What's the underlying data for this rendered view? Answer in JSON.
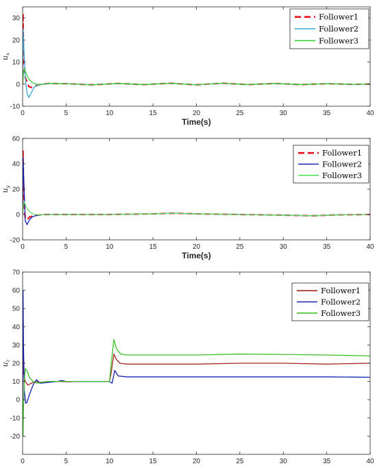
{
  "chart_data": [
    {
      "type": "line",
      "panel": "ux",
      "ylabel_main": "u",
      "ylabel_sub": "x",
      "xlabel": "Time(s)",
      "xlim": [
        0,
        40
      ],
      "ylim": [
        -10,
        35
      ],
      "xticks": [
        0,
        5,
        10,
        15,
        20,
        25,
        30,
        35,
        40
      ],
      "xtick_labels": [
        "0",
        "5",
        "10",
        "15",
        "20",
        "25",
        "30",
        "35",
        "40"
      ],
      "yticks": [
        -10,
        0,
        10,
        20,
        30
      ],
      "ytick_labels": [
        "-10",
        "0",
        "10",
        "20",
        "30"
      ],
      "grid": false,
      "legend_position": "top-right",
      "series": [
        {
          "name": "Follower1",
          "color": "#e8141b",
          "dash": true,
          "x": [
            0,
            0.05,
            0.1,
            0.2,
            0.3,
            0.5,
            0.7,
            1,
            1.3,
            1.7,
            2.2,
            3,
            5,
            8,
            11,
            14,
            17,
            20,
            23,
            26,
            29,
            32,
            35,
            38,
            40
          ],
          "y": [
            0,
            32,
            15,
            8,
            3,
            1,
            -1,
            -1.5,
            -1,
            -0.5,
            0,
            0.3,
            0.2,
            -0.3,
            0.3,
            -0.2,
            0.4,
            -0.3,
            0.4,
            -0.2,
            0.3,
            -0.2,
            0.2,
            -0.1,
            0
          ]
        },
        {
          "name": "Follower2",
          "color": "#3aa7d8",
          "dash": false,
          "x": [
            0,
            0.05,
            0.1,
            0.2,
            0.3,
            0.5,
            0.7,
            1,
            1.3,
            1.7,
            2.2,
            3,
            5,
            8,
            11,
            14,
            17,
            20,
            23,
            26,
            29,
            32,
            35,
            38,
            40
          ],
          "y": [
            0,
            25,
            20,
            12,
            3,
            -4,
            -6,
            -4,
            -1.5,
            -0.5,
            0,
            0.3,
            0.2,
            -0.3,
            0.3,
            -0.2,
            0.4,
            -0.3,
            0.4,
            -0.2,
            0.3,
            -0.2,
            0.2,
            -0.1,
            0
          ]
        },
        {
          "name": "Follower3",
          "color": "#3ccf3c",
          "dash": false,
          "x": [
            0,
            0.1,
            0.2,
            0.4,
            0.6,
            0.9,
            1.2,
            1.6,
            2,
            2.5,
            3,
            5,
            8,
            11,
            14,
            17,
            20,
            23,
            26,
            29,
            32,
            35,
            38,
            40
          ],
          "y": [
            0,
            5,
            7,
            5,
            3,
            1.5,
            0.5,
            0,
            -0.3,
            0,
            0.3,
            0.2,
            -0.3,
            0.3,
            -0.2,
            0.4,
            -0.3,
            0.4,
            -0.2,
            0.3,
            -0.2,
            0.2,
            -0.1,
            0
          ]
        }
      ]
    },
    {
      "type": "line",
      "panel": "uy",
      "ylabel_main": "u",
      "ylabel_sub": "y",
      "xlabel": "Time(s)",
      "xlim": [
        0,
        40
      ],
      "ylim": [
        -20,
        60
      ],
      "xticks": [
        0,
        5,
        10,
        15,
        20,
        25,
        30,
        35,
        40
      ],
      "xtick_labels": [
        "0",
        "5",
        "10",
        "15",
        "20",
        "25",
        "30",
        "35",
        "40"
      ],
      "yticks": [
        -20,
        0,
        20,
        40,
        60
      ],
      "ytick_labels": [
        "-20",
        "0",
        "20",
        "40",
        "60"
      ],
      "grid": false,
      "legend_position": "top-right",
      "series": [
        {
          "name": "Follower1",
          "color": "#e8141b",
          "dash": true,
          "x": [
            0,
            0.05,
            0.1,
            0.2,
            0.3,
            0.5,
            0.8,
            1.2,
            1.8,
            2.5,
            5,
            10,
            15,
            17.5,
            20,
            25,
            30,
            33.5,
            36,
            40
          ],
          "y": [
            0,
            50,
            25,
            6,
            -3,
            -4,
            -2,
            -1,
            -0.5,
            0,
            0,
            0,
            0.5,
            1,
            0.5,
            0,
            -0.5,
            -1,
            -0.3,
            0
          ]
        },
        {
          "name": "Follower2",
          "color": "#1620b5",
          "dash": false,
          "x": [
            0,
            0.05,
            0.1,
            0.2,
            0.3,
            0.5,
            0.8,
            1.2,
            1.8,
            2.5,
            5,
            10,
            15,
            17.5,
            20,
            25,
            30,
            33.5,
            36,
            40
          ],
          "y": [
            0,
            45,
            35,
            15,
            -5,
            -8,
            -4,
            -1.5,
            -0.5,
            0,
            0,
            0,
            0.5,
            1,
            0.5,
            0,
            -0.5,
            -1,
            -0.3,
            0
          ]
        },
        {
          "name": "Follower3",
          "color": "#5fe05f",
          "dash": false,
          "x": [
            0,
            0.1,
            0.2,
            0.4,
            0.7,
            1,
            1.5,
            2,
            2.5,
            5,
            10,
            15,
            17.5,
            20,
            25,
            30,
            33.5,
            36,
            40
          ],
          "y": [
            0,
            8,
            10,
            6,
            3,
            1,
            0,
            -0.5,
            0,
            0,
            0,
            0.5,
            1,
            0.5,
            0,
            -0.5,
            -1,
            -0.3,
            0
          ]
        }
      ]
    },
    {
      "type": "line",
      "panel": "uz",
      "ylabel_main": "u",
      "ylabel_sub": "z",
      "xlabel": "Time(s)",
      "xlim": [
        0,
        40
      ],
      "ylim": [
        -30,
        70
      ],
      "xticks": [
        0,
        5,
        10,
        15,
        20,
        25,
        30,
        35,
        40
      ],
      "xtick_labels": [
        "0",
        "5",
        "10",
        "15",
        "20",
        "25",
        "30",
        "35",
        "40"
      ],
      "yticks": [
        -20,
        -10,
        0,
        10,
        20,
        30,
        40,
        50,
        60,
        70
      ],
      "ytick_labels": [
        "-20",
        "-10",
        "0",
        "10",
        "20",
        "30",
        "40",
        "50",
        "60",
        "70"
      ],
      "grid": false,
      "legend_position": "top-right",
      "series": [
        {
          "name": "Follower1",
          "color": "#a3261f",
          "dash": false,
          "x": [
            0,
            0.05,
            0.1,
            0.3,
            0.6,
            1,
            1.5,
            2,
            3,
            4,
            5,
            7,
            10,
            10.2,
            10.5,
            10.8,
            11.2,
            12,
            15,
            20,
            25,
            30,
            35,
            40
          ],
          "y": [
            0,
            30,
            15,
            10,
            8,
            9,
            10,
            9.5,
            10,
            10,
            9.8,
            10,
            10,
            15,
            25,
            22,
            20,
            19.5,
            19.5,
            19.5,
            20,
            20,
            19.5,
            20
          ]
        },
        {
          "name": "Follower2",
          "color": "#1620b5",
          "dash": false,
          "x": [
            0,
            0.05,
            0.1,
            0.2,
            0.35,
            0.5,
            0.8,
            1.2,
            1.6,
            2,
            3,
            4,
            4.5,
            5,
            7,
            10,
            10.3,
            10.6,
            11,
            12,
            15,
            20,
            25,
            30,
            35,
            40
          ],
          "y": [
            0,
            60,
            30,
            5,
            -2,
            -1.5,
            3,
            8,
            11,
            9,
            9.5,
            10,
            10.5,
            10,
            10,
            10,
            9,
            16,
            13,
            12.5,
            12.5,
            12.5,
            12.5,
            12.5,
            12.5,
            12.3
          ]
        },
        {
          "name": "Follower3",
          "color": "#3fbf2a",
          "dash": false,
          "x": [
            0,
            0.05,
            0.1,
            0.2,
            0.3,
            0.5,
            0.8,
            1.2,
            1.7,
            2.2,
            3,
            5,
            7,
            10,
            10.2,
            10.5,
            10.8,
            11.3,
            12,
            15,
            20,
            25,
            30,
            35,
            40
          ],
          "y": [
            0,
            -20,
            -5,
            10,
            17,
            16,
            12,
            10,
            9,
            9.5,
            10,
            10,
            10,
            10,
            20,
            33,
            28,
            25,
            24.5,
            24.5,
            24.5,
            25,
            24.8,
            24.5,
            24
          ]
        }
      ]
    }
  ]
}
